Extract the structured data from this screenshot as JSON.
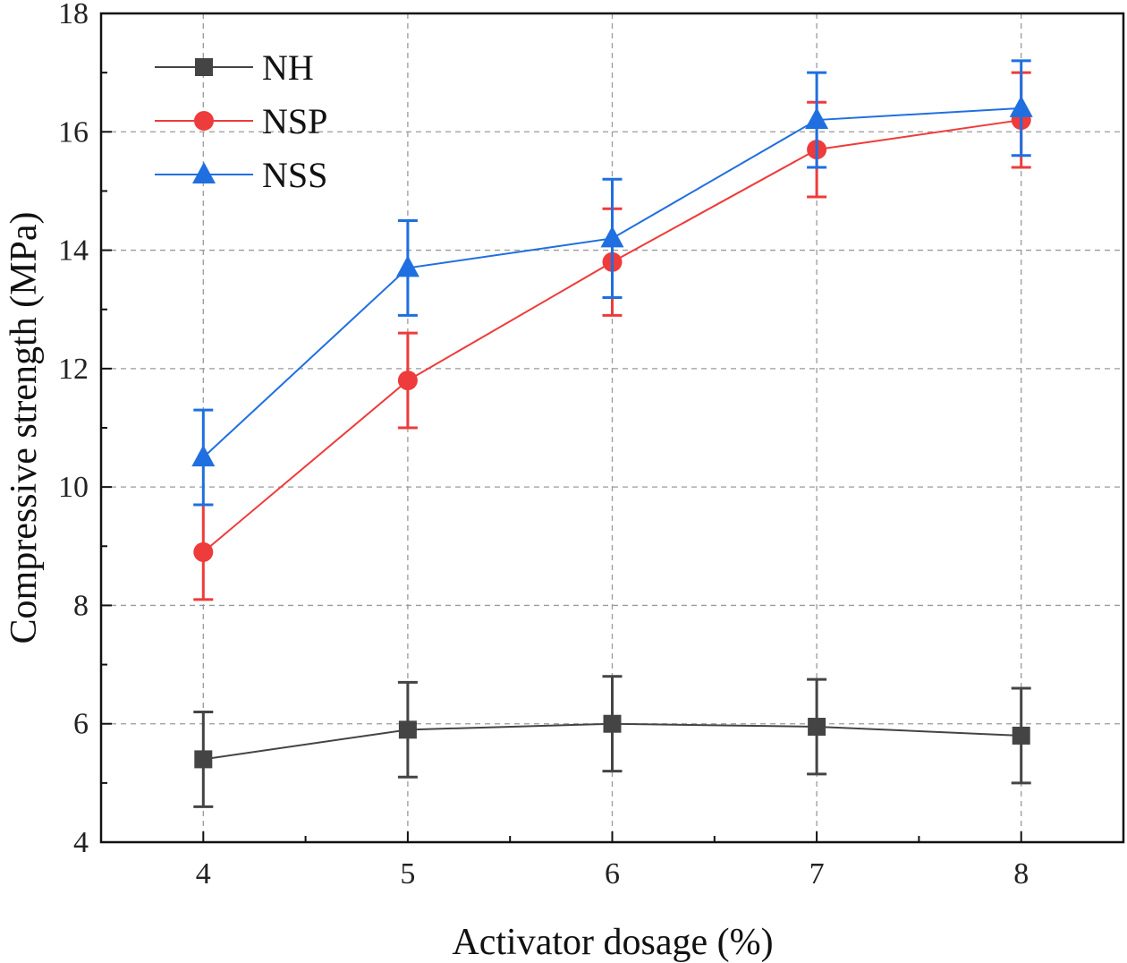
{
  "chart_data": {
    "type": "line",
    "xlabel": "Activator dosage (%)",
    "ylabel": "Compressive strength (MPa)",
    "x": [
      4,
      5,
      6,
      7,
      8
    ],
    "xlim": [
      3.5,
      8.5
    ],
    "ylim": [
      4,
      18
    ],
    "x_ticks": [
      "4",
      "5",
      "6",
      "7",
      "8"
    ],
    "y_ticks": [
      "4",
      "6",
      "8",
      "10",
      "12",
      "14",
      "16",
      "18"
    ],
    "grid": true,
    "legend_position": "top-left",
    "series": [
      {
        "name": "NH",
        "marker": "square",
        "color": "#444444",
        "values": [
          5.4,
          5.9,
          6.0,
          5.95,
          5.8
        ],
        "error": [
          0.8,
          0.8,
          0.8,
          0.8,
          0.8
        ]
      },
      {
        "name": "NSP",
        "marker": "circle",
        "color": "#ee3b3b",
        "values": [
          8.9,
          11.8,
          13.8,
          15.7,
          16.2
        ],
        "error": [
          0.8,
          0.8,
          0.9,
          0.8,
          0.8
        ]
      },
      {
        "name": "NSS",
        "marker": "triangle",
        "color": "#1f6fe0",
        "values": [
          10.5,
          13.7,
          14.2,
          16.2,
          16.4
        ],
        "error": [
          0.8,
          0.8,
          1.0,
          0.8,
          0.8
        ]
      }
    ]
  }
}
